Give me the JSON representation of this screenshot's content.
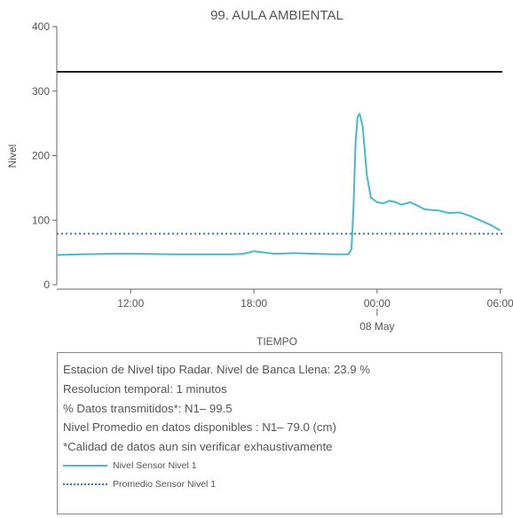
{
  "chart_data": {
    "type": "line",
    "title": "99. AULA AMBIENTAL",
    "xlabel": "TIEMPO",
    "ylabel": "Nivel",
    "ylim": [
      0,
      400
    ],
    "yticks": [
      0,
      100,
      200,
      300,
      400
    ],
    "xtick_labels": [
      "12:00",
      "18:00",
      "00:00",
      "06:00"
    ],
    "xtick_sublabel": "08 May",
    "x_range_hours": [
      8.4,
      30.1
    ],
    "xtick_hours": [
      12,
      18,
      24,
      30
    ],
    "xtick_sublabel_hour": 24,
    "bankfull_level": 330,
    "series": [
      {
        "name": "Nivel Sensor Nivel 1",
        "color": "#4bb8c8",
        "style": "solid",
        "x_hours": [
          8.4,
          9.5,
          11.0,
          12.5,
          14.0,
          15.5,
          17.0,
          17.5,
          18.0,
          18.5,
          19.0,
          20.0,
          21.0,
          22.0,
          22.6,
          22.75,
          22.85,
          22.95,
          23.05,
          23.15,
          23.3,
          23.5,
          23.7,
          24.0,
          24.3,
          24.6,
          24.9,
          25.2,
          25.6,
          26.0,
          26.3,
          26.6,
          27.0,
          27.5,
          28.0,
          28.5,
          29.0,
          29.5,
          30.0
        ],
        "values": [
          46,
          47,
          48,
          48,
          47,
          47,
          47,
          48,
          52,
          50,
          48,
          49,
          48,
          47,
          47,
          55,
          120,
          220,
          260,
          265,
          245,
          170,
          135,
          128,
          126,
          130,
          128,
          124,
          128,
          122,
          117,
          116,
          115,
          111,
          112,
          107,
          100,
          93,
          84
        ]
      },
      {
        "name": "Promedio Sensor Nivel 1",
        "color": "#3b78b8",
        "style": "dotted",
        "value": 79
      }
    ],
    "grid": false
  },
  "info": {
    "lines": [
      "Estacion de Nivel tipo Radar. Nivel de Banca Llena: 23.9 %",
      "Resolucion temporal: 1 minutos",
      "% Datos transmitidos*: N1– 99.5",
      "Nivel Promedio en datos disponibles : N1– 79.0 (cm)",
      "*Calidad de datos aun sin verificar exhaustivamente"
    ]
  }
}
